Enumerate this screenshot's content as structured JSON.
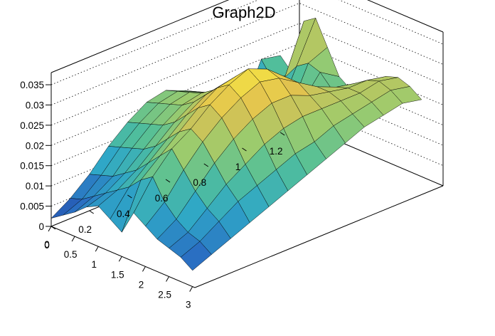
{
  "chart_data": {
    "type": "surface",
    "title": "Graph2D",
    "x": {
      "label": "",
      "range": [
        0,
        3.05
      ],
      "ticks": [
        0,
        0.5,
        1,
        1.5,
        2,
        2.5,
        3
      ],
      "tick_labels": [
        "0",
        "0.5",
        "1",
        "1.5",
        "2",
        "2.5",
        "3"
      ]
    },
    "y": {
      "label": "",
      "range": [
        0,
        1.3
      ],
      "ticks": [
        0,
        0.2,
        0.4,
        0.6,
        0.8,
        1,
        1.2
      ],
      "tick_labels": [
        "0",
        "0.2",
        "0.4",
        "0.6",
        "0.8",
        "1",
        "1.2"
      ]
    },
    "z": {
      "label": "",
      "range": [
        0,
        0.038
      ],
      "ticks": [
        0,
        0.005,
        0.01,
        0.015,
        0.02,
        0.025,
        0.03,
        0.035
      ],
      "tick_labels": [
        "0",
        "0.005",
        "0.01",
        "0.015",
        "0.02",
        "0.025",
        "0.03",
        "0.035"
      ]
    },
    "grid": true,
    "colormap": [
      "#1f3c9f",
      "#2a6fc2",
      "#2fa7c7",
      "#52bf99",
      "#9ccb6d",
      "#e0c050",
      "#f7e642"
    ],
    "surface": {
      "x": [
        0,
        0.25,
        0.5,
        0.75,
        1.0,
        1.25,
        1.5,
        1.75,
        2.0,
        2.25,
        2.5,
        2.75,
        3.0
      ],
      "y": [
        0,
        0.1,
        0.2,
        0.3,
        0.4,
        0.5,
        0.6,
        0.7,
        0.8,
        0.9,
        1.0,
        1.1,
        1.2
      ],
      "z": [
        [
          0.002,
          0.004,
          0.006,
          0.0085,
          0.01,
          0.008,
          0.006,
          0.012,
          0.01,
          0.008,
          0.007,
          0.006,
          0.004
        ],
        [
          0.005,
          0.006,
          0.008,
          0.01,
          0.012,
          0.014,
          0.017,
          0.019,
          0.014,
          0.011,
          0.009,
          0.008,
          0.006
        ],
        [
          0.009,
          0.01,
          0.011,
          0.013,
          0.015,
          0.018,
          0.021,
          0.024,
          0.02,
          0.016,
          0.013,
          0.011,
          0.008
        ],
        [
          0.014,
          0.015,
          0.016,
          0.017,
          0.019,
          0.022,
          0.025,
          0.027,
          0.025,
          0.021,
          0.017,
          0.014,
          0.01
        ],
        [
          0.018,
          0.019,
          0.02,
          0.021,
          0.023,
          0.026,
          0.029,
          0.031,
          0.029,
          0.025,
          0.02,
          0.016,
          0.012
        ],
        [
          0.021,
          0.022,
          0.023,
          0.024,
          0.026,
          0.029,
          0.032,
          0.034,
          0.032,
          0.028,
          0.023,
          0.018,
          0.014
        ],
        [
          0.022,
          0.023,
          0.024,
          0.025,
          0.027,
          0.03,
          0.033,
          0.036,
          0.034,
          0.03,
          0.025,
          0.02,
          0.016
        ],
        [
          0.02,
          0.021,
          0.022,
          0.023,
          0.025,
          0.028,
          0.031,
          0.034,
          0.033,
          0.03,
          0.026,
          0.021,
          0.018
        ],
        [
          0.016,
          0.017,
          0.018,
          0.019,
          0.021,
          0.024,
          0.027,
          0.03,
          0.03,
          0.028,
          0.026,
          0.023,
          0.02
        ],
        [
          0.012,
          0.013,
          0.014,
          0.015,
          0.017,
          0.02,
          0.023,
          0.026,
          0.027,
          0.027,
          0.026,
          0.024,
          0.022
        ],
        [
          0.009,
          0.01,
          0.011,
          0.012,
          0.014,
          0.017,
          0.02,
          0.023,
          0.025,
          0.026,
          0.026,
          0.025,
          0.023
        ],
        [
          0.02,
          0.016,
          0.018,
          0.022,
          0.024,
          0.023,
          0.02,
          0.022,
          0.024,
          0.026,
          0.027,
          0.026,
          0.024
        ],
        [
          0.019,
          0.016,
          0.03,
          0.032,
          0.026,
          0.02,
          0.018,
          0.02,
          0.023,
          0.025,
          0.026,
          0.025,
          0.023
        ]
      ]
    }
  }
}
